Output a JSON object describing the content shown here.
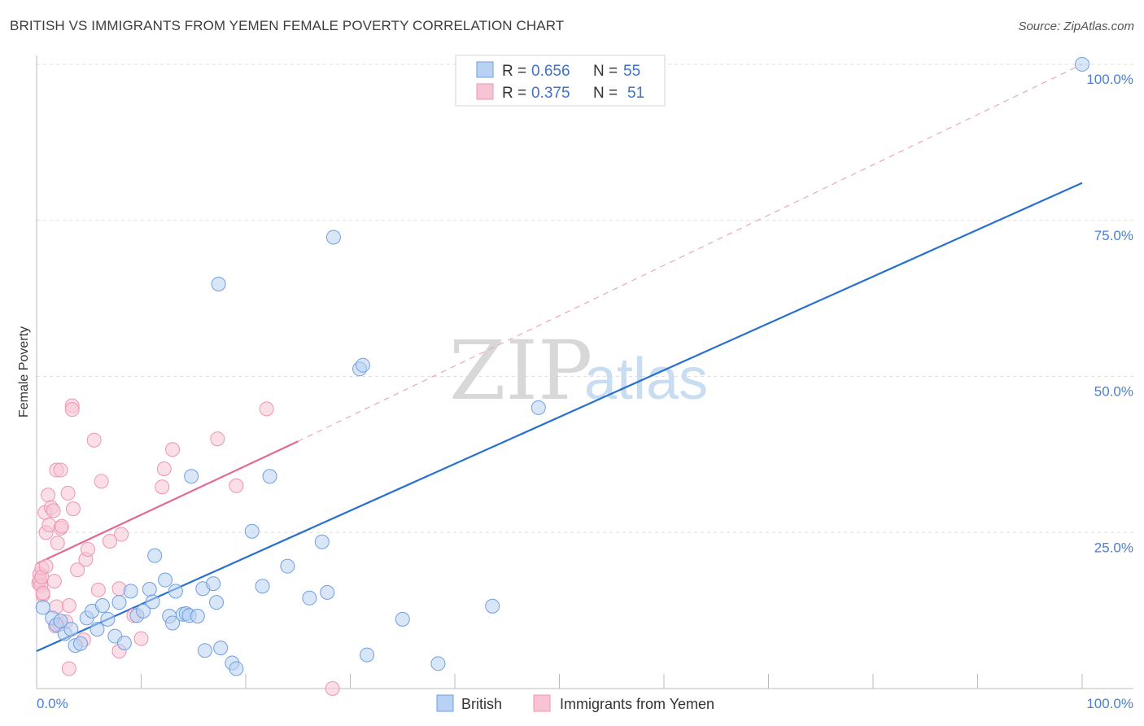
{
  "header": {
    "title": "BRITISH VS IMMIGRANTS FROM YEMEN FEMALE POVERTY CORRELATION CHART",
    "source": "Source: ZipAtlas.com"
  },
  "watermark": {
    "zip": "ZIP",
    "atlas": "atlas"
  },
  "colors": {
    "british_fill": "#b9d2f3",
    "british_stroke": "#6f9fe0",
    "british_line": "#2870cf",
    "yemen_fill": "#f8c4d4",
    "yemen_stroke": "#ee94b1",
    "yemen_line": "#e06a95",
    "tick_text": "#4a7fd4",
    "grid": "#dddddd"
  },
  "legend": {
    "rows": [
      {
        "r_label": "R = ",
        "r_value": "0.656",
        "n_label": "N = ",
        "n_value": "55"
      },
      {
        "r_label": "R = ",
        "r_value": "0.375",
        "n_label": "N = ",
        "n_value": "51"
      }
    ]
  },
  "bottom_legend": {
    "british": "British",
    "yemen": "Immigrants from Yemen"
  },
  "chart_data": {
    "type": "scatter",
    "title": "BRITISH VS IMMIGRANTS FROM YEMEN FEMALE POVERTY CORRELATION CHART",
    "xlabel": "",
    "ylabel": "Female Poverty",
    "xlim": [
      0,
      105
    ],
    "ylim": [
      0,
      105
    ],
    "x_tick_labels": [
      "0.0%",
      "100.0%"
    ],
    "y_ticks": [
      25,
      50,
      75,
      100
    ],
    "y_tick_labels": [
      "25.0%",
      "50.0%",
      "75.0%",
      "100.0%"
    ],
    "grid": true,
    "series": [
      {
        "name": "British",
        "R": 0.656,
        "N": 55,
        "trend": {
          "x": [
            0,
            100
          ],
          "y": [
            6.0,
            81.0
          ],
          "style": "solid"
        },
        "points": [
          [
            0.6,
            13.0
          ],
          [
            1.5,
            11.3
          ],
          [
            1.9,
            10.2
          ],
          [
            2.3,
            10.8
          ],
          [
            2.7,
            8.8
          ],
          [
            3.3,
            9.5
          ],
          [
            3.7,
            6.9
          ],
          [
            4.2,
            7.2
          ],
          [
            4.8,
            11.3
          ],
          [
            5.3,
            12.4
          ],
          [
            5.8,
            9.5
          ],
          [
            6.3,
            13.3
          ],
          [
            6.8,
            11.1
          ],
          [
            7.5,
            8.4
          ],
          [
            7.9,
            13.8
          ],
          [
            8.4,
            7.3
          ],
          [
            9.0,
            15.6
          ],
          [
            9.6,
            11.7
          ],
          [
            10.2,
            12.4
          ],
          [
            10.8,
            15.9
          ],
          [
            11.1,
            13.9
          ],
          [
            11.3,
            21.3
          ],
          [
            12.3,
            17.4
          ],
          [
            12.7,
            11.6
          ],
          [
            13.0,
            10.5
          ],
          [
            13.3,
            15.6
          ],
          [
            14.0,
            11.9
          ],
          [
            14.3,
            12.0
          ],
          [
            14.6,
            11.7
          ],
          [
            14.8,
            34.0
          ],
          [
            15.4,
            11.6
          ],
          [
            15.9,
            16.0
          ],
          [
            16.1,
            6.1
          ],
          [
            16.9,
            16.8
          ],
          [
            17.2,
            13.8
          ],
          [
            17.4,
            64.8
          ],
          [
            17.6,
            6.5
          ],
          [
            18.7,
            4.1
          ],
          [
            19.1,
            3.2
          ],
          [
            20.6,
            25.2
          ],
          [
            21.6,
            16.4
          ],
          [
            22.3,
            34.0
          ],
          [
            24.0,
            19.6
          ],
          [
            26.1,
            14.5
          ],
          [
            27.3,
            23.5
          ],
          [
            27.8,
            15.4
          ],
          [
            28.4,
            72.3
          ],
          [
            30.9,
            51.2
          ],
          [
            31.2,
            51.8
          ],
          [
            31.6,
            5.4
          ],
          [
            35.0,
            11.1
          ],
          [
            38.4,
            4.0
          ],
          [
            43.6,
            13.2
          ],
          [
            48.0,
            45.0
          ],
          [
            100.0,
            100.0
          ]
        ]
      },
      {
        "name": "Immigrants from Yemen",
        "R": 0.375,
        "N": 51,
        "trend": {
          "x": [
            0,
            25
          ],
          "y": [
            20.0,
            39.6
          ],
          "style": "solid"
        },
        "trend_extension": {
          "x": [
            25,
            100
          ],
          "y": [
            39.6,
            100.0
          ],
          "style": "dashed"
        },
        "points": [
          [
            0.2,
            16.9
          ],
          [
            0.3,
            18.3
          ],
          [
            0.3,
            17.3
          ],
          [
            0.4,
            16.5
          ],
          [
            0.5,
            19.3
          ],
          [
            0.5,
            17.9
          ],
          [
            0.6,
            15.0
          ],
          [
            0.8,
            28.2
          ],
          [
            0.9,
            19.6
          ],
          [
            0.9,
            25.0
          ],
          [
            1.1,
            31.0
          ],
          [
            1.2,
            26.2
          ],
          [
            1.4,
            29.0
          ],
          [
            1.6,
            28.5
          ],
          [
            1.7,
            17.2
          ],
          [
            1.8,
            10.0
          ],
          [
            1.9,
            13.1
          ],
          [
            1.9,
            35.0
          ],
          [
            2.0,
            23.3
          ],
          [
            2.2,
            10.3
          ],
          [
            2.3,
            25.7
          ],
          [
            2.3,
            35.0
          ],
          [
            2.4,
            26.0
          ],
          [
            2.8,
            10.7
          ],
          [
            3.0,
            31.3
          ],
          [
            3.1,
            3.2
          ],
          [
            3.1,
            13.3
          ],
          [
            3.4,
            45.3
          ],
          [
            3.4,
            44.7
          ],
          [
            3.5,
            28.8
          ],
          [
            3.9,
            19.0
          ],
          [
            4.5,
            7.8
          ],
          [
            4.7,
            20.7
          ],
          [
            4.9,
            22.3
          ],
          [
            5.5,
            39.8
          ],
          [
            5.9,
            15.8
          ],
          [
            6.2,
            33.2
          ],
          [
            7.0,
            23.6
          ],
          [
            7.9,
            6.0
          ],
          [
            7.9,
            16.0
          ],
          [
            8.1,
            24.7
          ],
          [
            9.3,
            11.7
          ],
          [
            10.0,
            8.0
          ],
          [
            12.0,
            32.3
          ],
          [
            12.2,
            35.2
          ],
          [
            13.0,
            38.3
          ],
          [
            17.3,
            40.0
          ],
          [
            19.1,
            32.5
          ],
          [
            22.0,
            44.8
          ],
          [
            28.3,
            0.0
          ],
          [
            0.6,
            15.3
          ]
        ]
      }
    ]
  }
}
